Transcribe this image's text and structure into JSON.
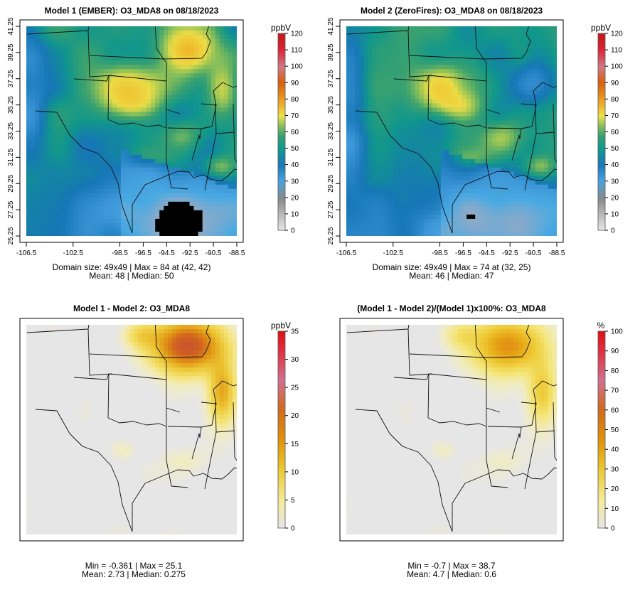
{
  "chart_data": [
    {
      "type": "heatmap",
      "title": "Model 1 (EMBER): O3_MDA8 on 08/18/2023",
      "x_ticks": [
        "-106.5",
        "-102.5",
        "-98.5",
        "-96.5",
        "-94.5",
        "-92.5",
        "-90.5",
        "-88.5"
      ],
      "y_ticks": [
        "25.25",
        "27.25",
        "29.25",
        "31.25",
        "33.25",
        "35.25",
        "37.25",
        "39.25",
        "41.25"
      ],
      "colorbar": {
        "unit": "ppbV",
        "ticks": [
          "0",
          "10",
          "20",
          "30",
          "40",
          "50",
          "60",
          "70",
          "80",
          "90",
          "100",
          "110",
          "120"
        ],
        "range": [
          0,
          120
        ]
      },
      "stats": [
        "Domain size: 49x49 | Max = 84 at (42, 42)",
        "Mean: 48 |  Median: 50"
      ],
      "field": "ozone",
      "high_region": "north-east"
    },
    {
      "type": "heatmap",
      "title": "Model 2 (ZeroFires): O3_MDA8 on 08/18/2023",
      "x_ticks": [
        "-106.5",
        "-102.5",
        "-98.5",
        "-96.5",
        "-94.5",
        "-92.5",
        "-90.5",
        "-88.5"
      ],
      "y_ticks": [
        "25.25",
        "27.25",
        "29.25",
        "31.25",
        "33.25",
        "35.25",
        "37.25",
        "39.25",
        "41.25"
      ],
      "colorbar": {
        "unit": "ppbV",
        "ticks": [
          "0",
          "10",
          "20",
          "30",
          "40",
          "50",
          "60",
          "70",
          "80",
          "90",
          "100",
          "110",
          "120"
        ],
        "range": [
          0,
          120
        ]
      },
      "stats": [
        "Domain size: 49x49 | Max = 74 at (32, 25)",
        "Mean: 46 |  Median: 47"
      ],
      "field": "ozone",
      "high_region": "central"
    },
    {
      "type": "heatmap",
      "title": "Model 1 - Model 2: O3_MDA8",
      "colorbar": {
        "unit": "ppbV",
        "ticks": [
          "0",
          "5",
          "10",
          "15",
          "20",
          "25",
          "30",
          "35"
        ],
        "range": [
          0,
          35
        ]
      },
      "stats": [
        "Min = -0.361 | Max = 25.1",
        "Mean: 2.73 |  Median: 0.275"
      ],
      "field": "difference"
    },
    {
      "type": "heatmap",
      "title": "(Model 1 - Model 2)/(Model 1)x100%: O3_MDA8",
      "colorbar": {
        "unit": "%",
        "ticks": [
          "0",
          "10",
          "20",
          "30",
          "40",
          "50",
          "60",
          "70",
          "80",
          "90",
          "100"
        ],
        "range": [
          0,
          100
        ]
      },
      "stats": [
        "Min = -0.7 | Max = 38.7",
        "Mean: 4.7 |  Median: 0.6"
      ],
      "field": "percent"
    }
  ]
}
